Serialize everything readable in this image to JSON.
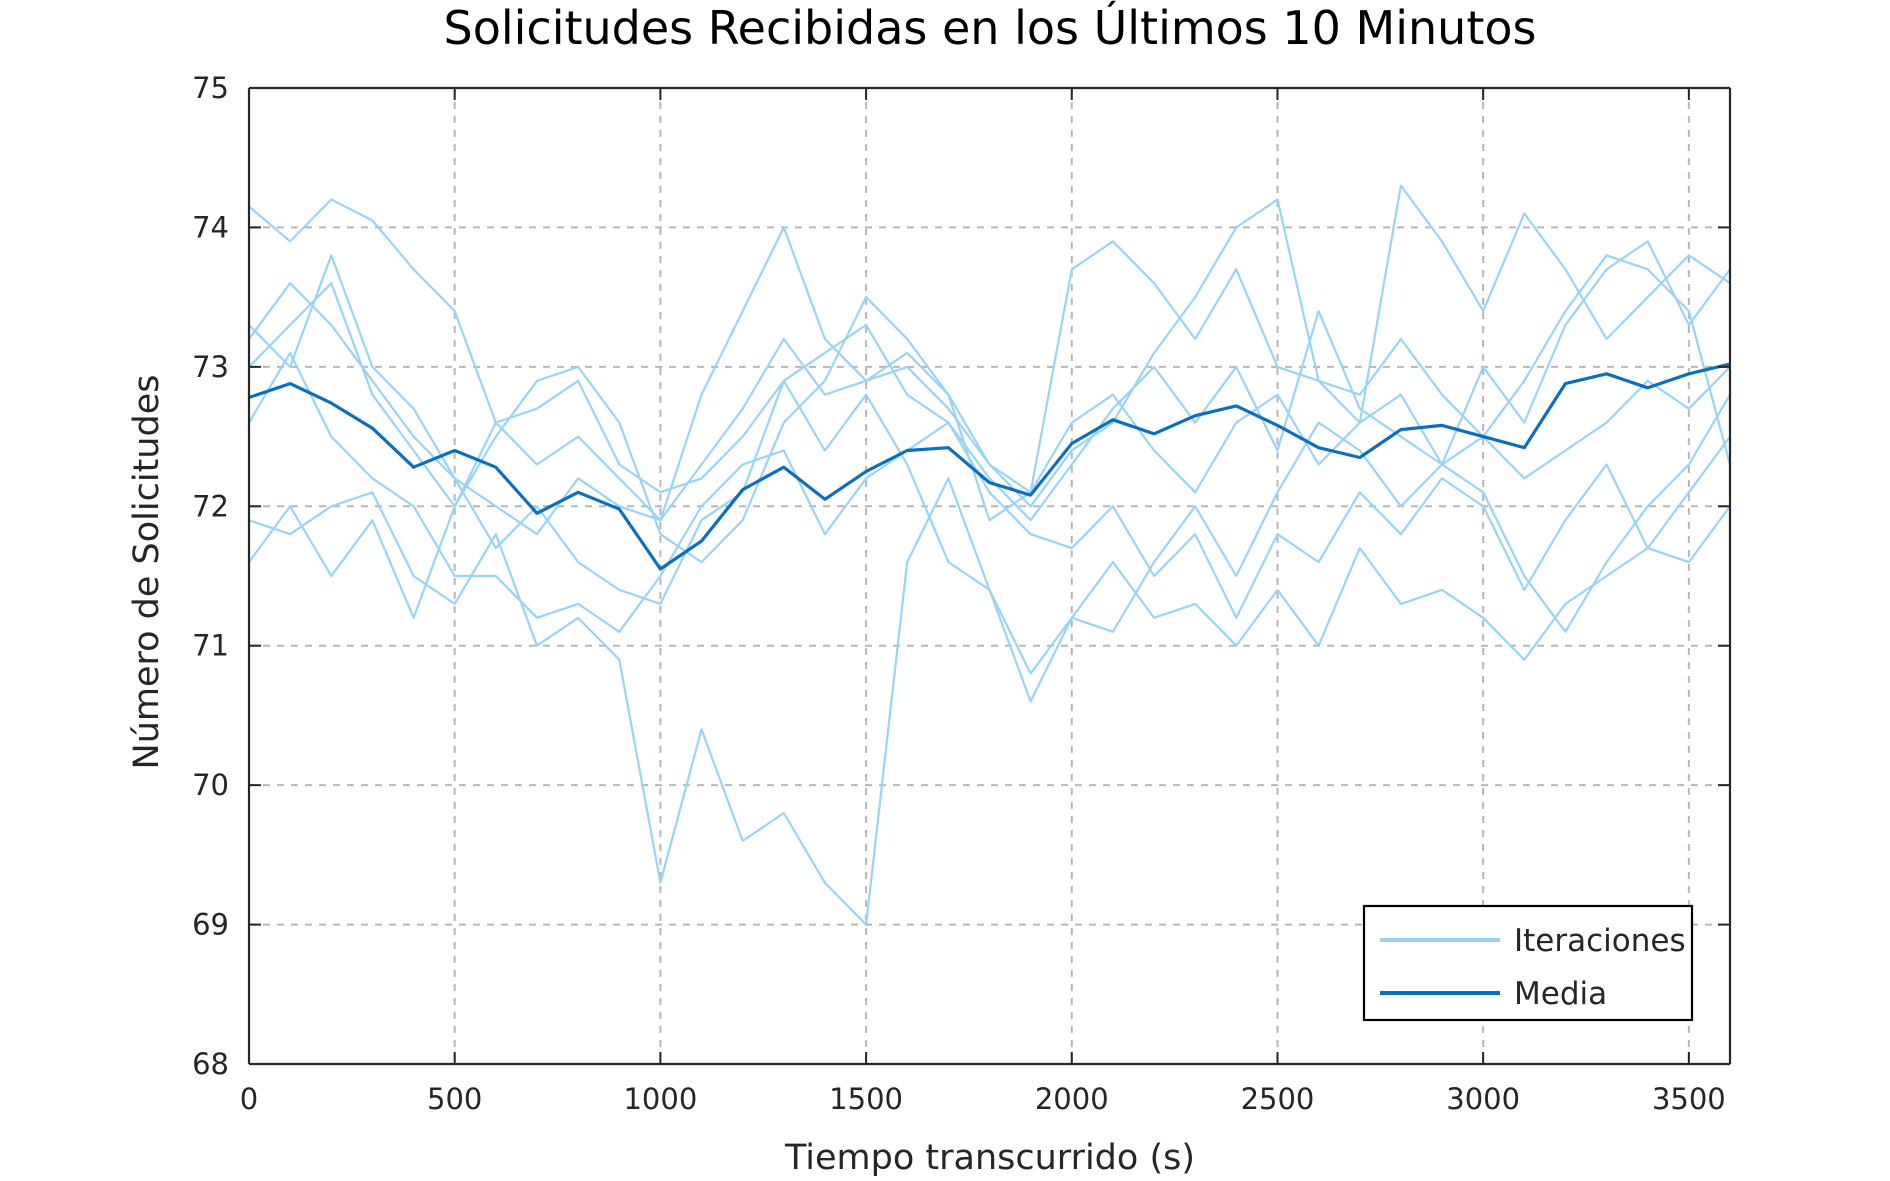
{
  "chart_data": {
    "type": "line",
    "title": "Solicitudes Recibidas en los Últimos 10 Minutos",
    "xlabel": "Tiempo transcurrido (s)",
    "ylabel": "Número de Solicitudes",
    "xlim": [
      0,
      3600
    ],
    "ylim": [
      68,
      75
    ],
    "xticks": [
      0,
      500,
      1000,
      1500,
      2000,
      2500,
      3000,
      3500
    ],
    "yticks": [
      68,
      69,
      70,
      71,
      72,
      73,
      74,
      75
    ],
    "grid": true,
    "legend_position": "bottom-right",
    "colors": {
      "iterations": "#99d3f5",
      "mean": "#0b6ebe"
    },
    "x": [
      0,
      100,
      200,
      300,
      400,
      500,
      600,
      700,
      800,
      900,
      1000,
      1100,
      1200,
      1300,
      1400,
      1500,
      1600,
      1700,
      1800,
      1900,
      2000,
      2100,
      2200,
      2300,
      2400,
      2500,
      2600,
      2700,
      2800,
      2900,
      3000,
      3100,
      3200,
      3300,
      3400,
      3500,
      3600
    ],
    "series": [
      {
        "name": "Iteraciones",
        "role": "iterations",
        "values": [
          74.15,
          73.9,
          74.2,
          74.05,
          73.7,
          73.4,
          72.6,
          72.3,
          72.5,
          72.2,
          71.9,
          72.8,
          73.4,
          74.0,
          73.2,
          72.9,
          73.1,
          72.8,
          72.3,
          72.0,
          72.4,
          72.6,
          73.1,
          73.5,
          74.0,
          74.2,
          72.9,
          72.6,
          74.3,
          73.9,
          73.4,
          74.1,
          73.7,
          73.2,
          73.5,
          73.8,
          73.6
        ]
      },
      {
        "name": "Iteraciones",
        "role": "iterations",
        "values": [
          73.2,
          73.6,
          73.3,
          72.9,
          72.5,
          72.2,
          72.0,
          71.8,
          72.2,
          72.0,
          71.9,
          72.3,
          72.7,
          73.2,
          72.8,
          72.9,
          73.0,
          72.7,
          72.3,
          72.1,
          73.7,
          73.9,
          73.6,
          73.2,
          73.7,
          73.0,
          72.9,
          72.8,
          73.2,
          72.8,
          72.5,
          72.9,
          73.4,
          73.8,
          73.7,
          73.4,
          72.3
        ]
      },
      {
        "name": "Iteraciones",
        "role": "iterations",
        "values": [
          73.3,
          73.0,
          73.8,
          73.0,
          72.7,
          72.2,
          71.7,
          72.0,
          71.6,
          71.4,
          71.3,
          71.9,
          72.1,
          72.9,
          73.1,
          73.3,
          72.8,
          72.6,
          72.2,
          71.9,
          72.3,
          72.7,
          73.0,
          72.6,
          73.0,
          72.4,
          73.4,
          72.7,
          72.5,
          72.3,
          73.0,
          72.6,
          73.3,
          73.7,
          73.9,
          73.3,
          73.7
        ]
      },
      {
        "name": "Iteraciones",
        "role": "iterations",
        "values": [
          72.6,
          73.1,
          72.5,
          72.2,
          72.0,
          71.5,
          71.5,
          71.2,
          71.3,
          71.1,
          71.5,
          72.0,
          72.3,
          72.4,
          71.8,
          72.2,
          72.4,
          72.6,
          72.1,
          71.8,
          71.7,
          72.0,
          71.5,
          71.8,
          71.2,
          71.8,
          71.6,
          72.1,
          71.8,
          72.2,
          72.0,
          71.4,
          71.9,
          72.3,
          71.7,
          72.1,
          72.5
        ]
      },
      {
        "name": "Iteraciones",
        "role": "iterations",
        "values": [
          71.9,
          71.8,
          72.0,
          72.1,
          71.5,
          71.3,
          71.8,
          71.0,
          71.2,
          70.9,
          69.3,
          70.4,
          69.6,
          69.8,
          69.3,
          69.0,
          71.6,
          72.2,
          71.4,
          70.6,
          71.2,
          71.6,
          71.2,
          71.3,
          71.0,
          71.4,
          71.0,
          71.7,
          71.3,
          71.4,
          71.2,
          70.9,
          71.3,
          71.5,
          71.7,
          71.6,
          72.0
        ]
      },
      {
        "name": "Iteraciones",
        "role": "iterations",
        "values": [
          71.6,
          72.0,
          71.5,
          71.9,
          71.2,
          72.0,
          72.6,
          72.7,
          72.9,
          72.3,
          72.1,
          72.2,
          72.5,
          72.9,
          72.4,
          72.8,
          72.3,
          71.6,
          71.4,
          70.8,
          71.2,
          71.1,
          71.6,
          72.0,
          71.5,
          72.1,
          72.6,
          72.4,
          72.0,
          72.3,
          72.1,
          71.5,
          71.1,
          71.6,
          72.0,
          72.3,
          72.8
        ]
      },
      {
        "name": "Iteraciones",
        "role": "iterations",
        "values": [
          73.0,
          73.3,
          73.6,
          72.8,
          72.4,
          72.0,
          72.5,
          72.9,
          73.0,
          72.6,
          71.8,
          71.6,
          71.9,
          72.6,
          72.9,
          73.5,
          73.2,
          72.8,
          71.9,
          72.1,
          72.6,
          72.8,
          72.4,
          72.1,
          72.6,
          72.8,
          72.3,
          72.6,
          72.8,
          72.3,
          72.5,
          72.2,
          72.4,
          72.6,
          72.9,
          72.7,
          73.0
        ]
      },
      {
        "name": "Media",
        "role": "mean",
        "values": [
          72.78,
          72.88,
          72.74,
          72.56,
          72.28,
          72.4,
          72.28,
          71.95,
          72.1,
          71.98,
          71.55,
          71.75,
          72.12,
          72.28,
          72.05,
          72.25,
          72.4,
          72.42,
          72.17,
          72.08,
          72.45,
          72.62,
          72.52,
          72.65,
          72.72,
          72.58,
          72.42,
          72.35,
          72.55,
          72.58,
          72.5,
          72.42,
          72.88,
          72.95,
          72.85,
          72.95,
          73.02
        ]
      }
    ],
    "legend": [
      {
        "label": "Iteraciones",
        "role": "iterations"
      },
      {
        "label": "Media",
        "role": "mean"
      }
    ]
  }
}
